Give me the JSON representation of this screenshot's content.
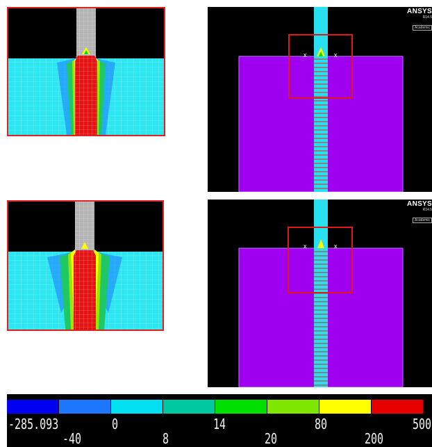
{
  "views": [
    {
      "brand": "ANSYS",
      "version": "R14.5",
      "license": "Academic"
    },
    {
      "brand": "ANSYS",
      "version": "R14.5",
      "license": "Academic"
    }
  ],
  "legend": {
    "colors": [
      "#0000f0",
      "#1e78ff",
      "#00e0f0",
      "#00c8a0",
      "#00e000",
      "#7fe600",
      "#ffff00",
      "#e60000"
    ],
    "top_labels": [
      "-285.093",
      "0",
      "14",
      "80",
      "500"
    ],
    "bottom_labels": [
      "-40",
      "8",
      "20",
      "200"
    ]
  }
}
